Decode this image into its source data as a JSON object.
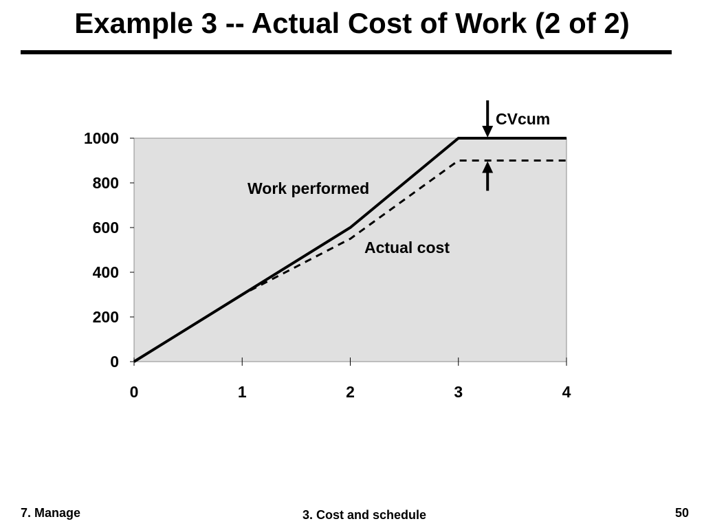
{
  "slide": {
    "title": "Example 3 -- Actual Cost of Work (2 of 2)"
  },
  "footer": {
    "left": "7. Manage",
    "center": "3. Cost and schedule",
    "right": "50"
  },
  "colors": {
    "plot_background": "#e0e0e0",
    "line": "#000000",
    "text": "#000000"
  },
  "chart_data": {
    "type": "line",
    "title": "",
    "xlabel": "",
    "ylabel": "",
    "xlim": [
      0,
      4
    ],
    "ylim": [
      0,
      1000
    ],
    "xticks": [
      0,
      1,
      2,
      3,
      4
    ],
    "yticks": [
      0,
      200,
      400,
      600,
      800,
      1000
    ],
    "grid": false,
    "series": [
      {
        "name": "Work performed",
        "style": "solid",
        "x": [
          0,
          1,
          2,
          3,
          4
        ],
        "y": [
          0,
          300,
          600,
          1000,
          1000
        ]
      },
      {
        "name": "Actual cost",
        "style": "dashed",
        "x": [
          0,
          1,
          2,
          3,
          4
        ],
        "y": [
          0,
          300,
          550,
          900,
          900
        ]
      }
    ],
    "annotations": [
      {
        "text": "CVcum",
        "type": "variance-arrows",
        "x": 3.27,
        "y_top": 1000,
        "y_bottom": 900
      }
    ]
  }
}
